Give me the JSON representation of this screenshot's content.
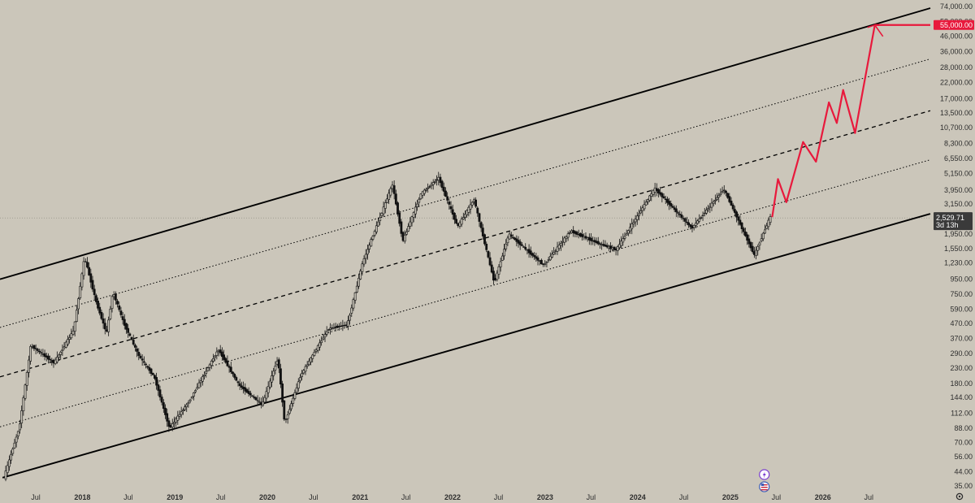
{
  "chart_data": {
    "type": "candlestick",
    "title": "",
    "y_scale": "log",
    "y_ticks": [
      "74,000.00",
      "58,000.00",
      "46,000.00",
      "36,000.00",
      "28,000.00",
      "22,000.00",
      "17,000.00",
      "13,500.00",
      "10,700.00",
      "8,300.00",
      "6,550.00",
      "5,150.00",
      "3,950.00",
      "3,150.00",
      "2,450.00",
      "1,950.00",
      "1,550.00",
      "1,230.00",
      "950.00",
      "750.00",
      "590.00",
      "470.00",
      "370.00",
      "290.00",
      "230.00",
      "180.00",
      "144.00",
      "112.00",
      "88.00",
      "70.00",
      "56.00",
      "44.00",
      "35.00"
    ],
    "x_ticks": [
      {
        "label": "Jul",
        "date": "2017-07-01",
        "bold": false
      },
      {
        "label": "2018",
        "date": "2018-01-01",
        "bold": true
      },
      {
        "label": "Jul",
        "date": "2018-07-01",
        "bold": false
      },
      {
        "label": "2019",
        "date": "2019-01-01",
        "bold": true
      },
      {
        "label": "Jul",
        "date": "2019-07-01",
        "bold": false
      },
      {
        "label": "2020",
        "date": "2020-01-01",
        "bold": true
      },
      {
        "label": "Jul",
        "date": "2020-07-01",
        "bold": false
      },
      {
        "label": "2021",
        "date": "2021-01-01",
        "bold": true
      },
      {
        "label": "Jul",
        "date": "2021-07-01",
        "bold": false
      },
      {
        "label": "2022",
        "date": "2022-01-01",
        "bold": true
      },
      {
        "label": "Jul",
        "date": "2022-07-01",
        "bold": false
      },
      {
        "label": "2023",
        "date": "2023-01-01",
        "bold": true
      },
      {
        "label": "Jul",
        "date": "2023-07-01",
        "bold": false
      },
      {
        "label": "2024",
        "date": "2024-01-01",
        "bold": true
      },
      {
        "label": "Jul",
        "date": "2024-07-01",
        "bold": false
      },
      {
        "label": "2025",
        "date": "2025-01-01",
        "bold": true
      },
      {
        "label": "Jul",
        "date": "2025-07-01",
        "bold": false
      },
      {
        "label": "2026",
        "date": "2026-01-01",
        "bold": true
      },
      {
        "label": "Jul",
        "date": "2026-07-01",
        "bold": false
      }
    ],
    "x_range": [
      "2017-02-10",
      "2027-03-01"
    ],
    "y_range": [
      32,
      82000
    ],
    "current_price": {
      "label": "2,529.71",
      "countdown": "3d 13h",
      "value": 2529.71
    },
    "target_price": {
      "label": "55,000.00",
      "value": 55000,
      "color": "#e8193c"
    },
    "price_path": [
      {
        "date": "2017-03-01",
        "value": 40
      },
      {
        "date": "2017-05-01",
        "value": 90
      },
      {
        "date": "2017-06-15",
        "value": 330
      },
      {
        "date": "2017-09-15",
        "value": 250
      },
      {
        "date": "2017-12-01",
        "value": 420
      },
      {
        "date": "2018-01-13",
        "value": 1350
      },
      {
        "date": "2018-03-01",
        "value": 650
      },
      {
        "date": "2018-04-10",
        "value": 400
      },
      {
        "date": "2018-05-05",
        "value": 780
      },
      {
        "date": "2018-06-15",
        "value": 480
      },
      {
        "date": "2018-08-15",
        "value": 280
      },
      {
        "date": "2018-10-15",
        "value": 200
      },
      {
        "date": "2018-12-14",
        "value": 88
      },
      {
        "date": "2019-03-01",
        "value": 135
      },
      {
        "date": "2019-06-25",
        "value": 310
      },
      {
        "date": "2019-09-15",
        "value": 175
      },
      {
        "date": "2019-12-15",
        "value": 128
      },
      {
        "date": "2020-02-15",
        "value": 270
      },
      {
        "date": "2020-03-13",
        "value": 95
      },
      {
        "date": "2020-05-15",
        "value": 205
      },
      {
        "date": "2020-09-01",
        "value": 430
      },
      {
        "date": "2020-11-15",
        "value": 460
      },
      {
        "date": "2021-01-15",
        "value": 1250
      },
      {
        "date": "2021-05-12",
        "value": 4300
      },
      {
        "date": "2021-06-22",
        "value": 1750
      },
      {
        "date": "2021-09-01",
        "value": 3700
      },
      {
        "date": "2021-11-10",
        "value": 4800
      },
      {
        "date": "2022-01-24",
        "value": 2200
      },
      {
        "date": "2022-03-30",
        "value": 3400
      },
      {
        "date": "2022-06-18",
        "value": 900
      },
      {
        "date": "2022-08-14",
        "value": 1950
      },
      {
        "date": "2022-12-30",
        "value": 1190
      },
      {
        "date": "2023-04-15",
        "value": 2050
      },
      {
        "date": "2023-08-15",
        "value": 1650
      },
      {
        "date": "2023-10-12",
        "value": 1520
      },
      {
        "date": "2024-03-12",
        "value": 4050
      },
      {
        "date": "2024-08-05",
        "value": 2150
      },
      {
        "date": "2024-12-10",
        "value": 4000
      },
      {
        "date": "2025-04-09",
        "value": 1400
      },
      {
        "date": "2025-06-10",
        "value": 2550
      }
    ],
    "channel_lines": [
      {
        "name": "upper",
        "style": "solid",
        "p1": {
          "date": "2017-02-10",
          "value": 950
        },
        "p2": {
          "date": "2027-03-01",
          "value": 72000
        }
      },
      {
        "name": "upper-mid",
        "style": "dotted",
        "p1": {
          "date": "2017-02-10",
          "value": 440
        },
        "p2": {
          "date": "2027-03-01",
          "value": 32000
        }
      },
      {
        "name": "mid",
        "style": "dashed",
        "p1": {
          "date": "2017-02-10",
          "value": 200
        },
        "p2": {
          "date": "2027-03-01",
          "value": 14000
        }
      },
      {
        "name": "lower-mid",
        "style": "dotted",
        "p1": {
          "date": "2017-02-10",
          "value": 90
        },
        "p2": {
          "date": "2027-03-01",
          "value": 6400
        }
      },
      {
        "name": "lower",
        "style": "solid",
        "p1": {
          "date": "2017-02-20",
          "value": 40
        },
        "p2": {
          "date": "2027-03-01",
          "value": 2700
        }
      }
    ],
    "projection_path": [
      {
        "date": "2025-06-15",
        "value": 2560
      },
      {
        "date": "2025-07-08",
        "value": 4700
      },
      {
        "date": "2025-08-10",
        "value": 3250
      },
      {
        "date": "2025-10-15",
        "value": 8500
      },
      {
        "date": "2025-12-05",
        "value": 6200
      },
      {
        "date": "2026-01-25",
        "value": 16000
      },
      {
        "date": "2026-02-25",
        "value": 11500
      },
      {
        "date": "2026-03-22",
        "value": 19500
      },
      {
        "date": "2026-05-08",
        "value": 9800
      },
      {
        "date": "2026-07-25",
        "value": 55000
      },
      {
        "date": "2026-08-12",
        "value": 55000
      }
    ],
    "colors": {
      "background": "#cbc6ba",
      "candles": "#111111",
      "channel": "#000000",
      "projection": "#e8193c",
      "axis_text": "#2e2e2e",
      "current_badge": "#3a3a3a"
    }
  },
  "markers": {
    "flash_icon": "lightning-icon",
    "flag_icon": "us-flag-icon"
  },
  "toolbar": {
    "settings_icon": "gear-icon"
  }
}
